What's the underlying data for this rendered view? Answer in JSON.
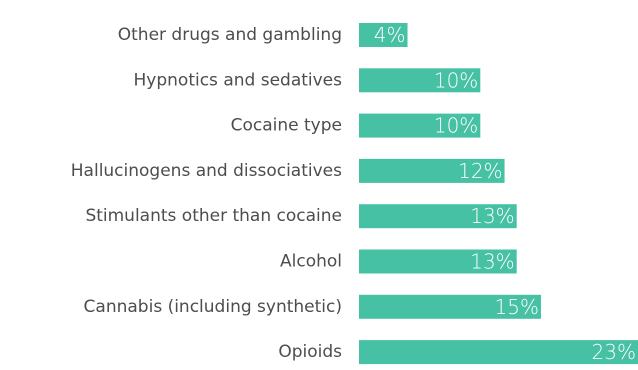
{
  "chart_data": {
    "type": "bar",
    "orientation": "horizontal",
    "categories": [
      "Other drugs and gambling",
      "Hypnotics and sedatives",
      "Cocaine type",
      "Hallucinogens and dissociatives",
      "Stimulants other than cocaine",
      "Alcohol",
      "Cannabis (including synthetic)",
      "Opioids"
    ],
    "values": [
      4,
      10,
      10,
      12,
      13,
      13,
      15,
      23
    ],
    "value_labels": [
      "4%",
      "10%",
      "10%",
      "12%",
      "13%",
      "13%",
      "15%",
      "23%"
    ],
    "unit": "%",
    "title": "",
    "xlabel": "",
    "ylabel": "",
    "xlim": [
      0,
      23
    ],
    "grid": false,
    "legend": "none",
    "bar_color": "#47c1a3",
    "label_color": "#4d4d4d",
    "value_label_color": "#ffffff"
  }
}
